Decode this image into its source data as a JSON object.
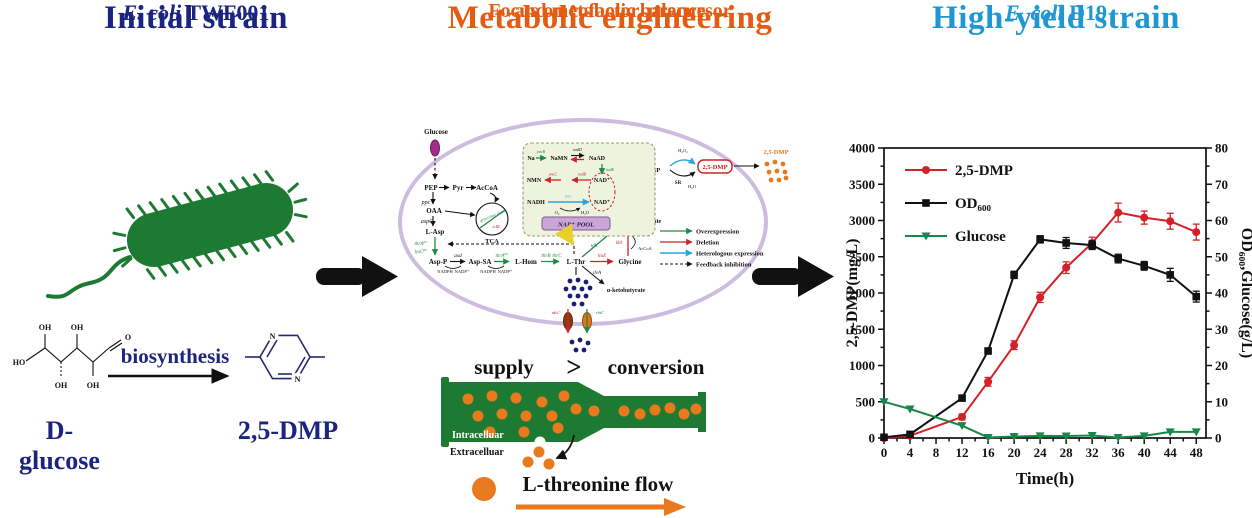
{
  "colors": {
    "navy": "#1b2480",
    "orange": "#e25c14",
    "azure": "#1f97d4",
    "cell_green": "#1e7a33",
    "membrane": "#cdbcdf",
    "dmp_red": "#cc2229",
    "dot_orange": "#e87a1d",
    "dark_red_gt": "#a51f2e"
  },
  "left": {
    "title": "Initial strain",
    "strain_italic": "E. coli",
    "strain_name": " TWF001",
    "arrow_label": "biosynthesis",
    "substrate_label": "D-glucose",
    "product_label": "2,5-DMP",
    "atoms": {
      "ho": "HO",
      "oh": "OH",
      "o": "O",
      "n": "N"
    }
  },
  "middle": {
    "title": "Metabolic engineering",
    "subtitle1": "Focus on cofactor, precursor",
    "subtitle2": "and metabolic balance",
    "balance": {
      "supply": "supply",
      "gt": ">",
      "conversion": "conversion",
      "intracellular": "Intracelluar",
      "extracellular": "Extracelluar",
      "flow_label": "L-threonine flow"
    },
    "pathway": {
      "glucose": "Glucose",
      "pep": "PEP",
      "pyr": "Pyr",
      "accoa": "AcCoA",
      "ppc": "ppc",
      "oaa": "OAA",
      "aspc": "aspC",
      "lasp": "L-Asp",
      "tca": "TCA",
      "glyoxylate": "glyoxylate shunt",
      "iclr": "iclR",
      "thra": "thrA",
      "lysc": "lysC",
      "fbr": "fbr",
      "aspp": "Asp-P",
      "asd": "asd",
      "aspsa": "Asp-SA",
      "lhom": "L-Hom",
      "thrb": "thrB",
      "thrc": "thrC",
      "lthr": "L-Thr",
      "ltae": "ltaE",
      "glycine": "Glycine",
      "kbl": "kbl",
      "tdh": "tdh",
      "coa": "CoA",
      "accoa2": "AcCoA",
      "nadh2": "NADH",
      "akb": "2-Amino-3-ketobutyrate",
      "aminoacetone": "Aminoacetone×2",
      "dihydro": "3,6-Dihydro-2,5-DMP",
      "dmp": "2,5-DMP",
      "dmp_out": "2,5-DMP",
      "sr": "SR",
      "co2": "CO₂",
      "h2o": "H₂O",
      "h2o2": "H₂O₂",
      "o2": "O₂",
      "nadph": "NADPH",
      "nadp": "NADP⁺",
      "ilva": "ilvA",
      "akb2": "α-ketobutyrate",
      "tdcc": "tdcC",
      "rhtc": "rhtC",
      "nad_pool": {
        "na": "Na",
        "pncb": "pncB",
        "namn": "NaMN",
        "nadd": "nadD",
        "naad": "NaAD",
        "nade": "nadE",
        "nmn": "NMN",
        "pncc": "pncC",
        "nadr": "nadR",
        "nadh": "NADH",
        "nox": "nox",
        "nad": "NAD⁺",
        "pool": "NAD⁺ POOL"
      },
      "legend": [
        {
          "label": "Overexpression",
          "color": "#1e8a45",
          "style": "solid"
        },
        {
          "label": "Deletion",
          "color": "#cc2229",
          "style": "solid"
        },
        {
          "label": "Heterologous expression",
          "color": "#2aa3dc",
          "style": "solid"
        },
        {
          "label": "Feedback inhibition",
          "color": "#222222",
          "style": "dashed"
        }
      ]
    }
  },
  "right": {
    "title": "High-yield strain",
    "strain_italic": "E. coli",
    "strain_name": " D19"
  },
  "chart_data": {
    "type": "line",
    "xlabel": "Time(h)",
    "ylabel_left": "2,5-DMP(mg/L)",
    "ylabel_right": "OD₆₀₀,Glucose(g/L)",
    "x": [
      0,
      4,
      12,
      16,
      20,
      24,
      28,
      32,
      36,
      40,
      44,
      48
    ],
    "xlim": [
      0,
      49.5
    ],
    "x_major": 4,
    "x_minor": 2,
    "ylim_left": [
      0,
      4000
    ],
    "y_left_major": 500,
    "y_left_minor": 250,
    "ylim_right": [
      0,
      80
    ],
    "y_right_major": 10,
    "y_right_minor": 5,
    "grid": false,
    "legend_position": "top-left",
    "series": [
      {
        "name": "2,5-DMP",
        "axis": "left",
        "color": "#d42027",
        "marker": "circle",
        "values": [
          0,
          30,
          290,
          775,
          1280,
          1940,
          2350,
          2690,
          3110,
          3040,
          2990,
          2840
        ],
        "errors": [
          0,
          15,
          40,
          60,
          60,
          70,
          80,
          80,
          130,
          90,
          110,
          110
        ]
      },
      {
        "name": "OD₆₀₀",
        "axis": "right",
        "color": "#111111",
        "marker": "square",
        "values": [
          0.2,
          1,
          11,
          24,
          45,
          54.8,
          53.8,
          53.2,
          49.5,
          47.5,
          45,
          39
        ],
        "errors": [
          0,
          0.3,
          0.6,
          0.8,
          1,
          1,
          1.5,
          1.2,
          1.2,
          1.2,
          1.8,
          1.5
        ]
      },
      {
        "name": "Glucose",
        "axis": "right",
        "color": "#17874a",
        "marker": "triangle-down",
        "values": [
          10,
          8,
          3.4,
          0.15,
          0.4,
          0.6,
          0.55,
          0.7,
          0.15,
          0.6,
          1.7,
          1.7
        ],
        "errors": [
          0,
          0,
          0,
          0,
          0,
          0,
          0,
          0,
          0,
          0,
          0,
          0
        ]
      }
    ]
  }
}
